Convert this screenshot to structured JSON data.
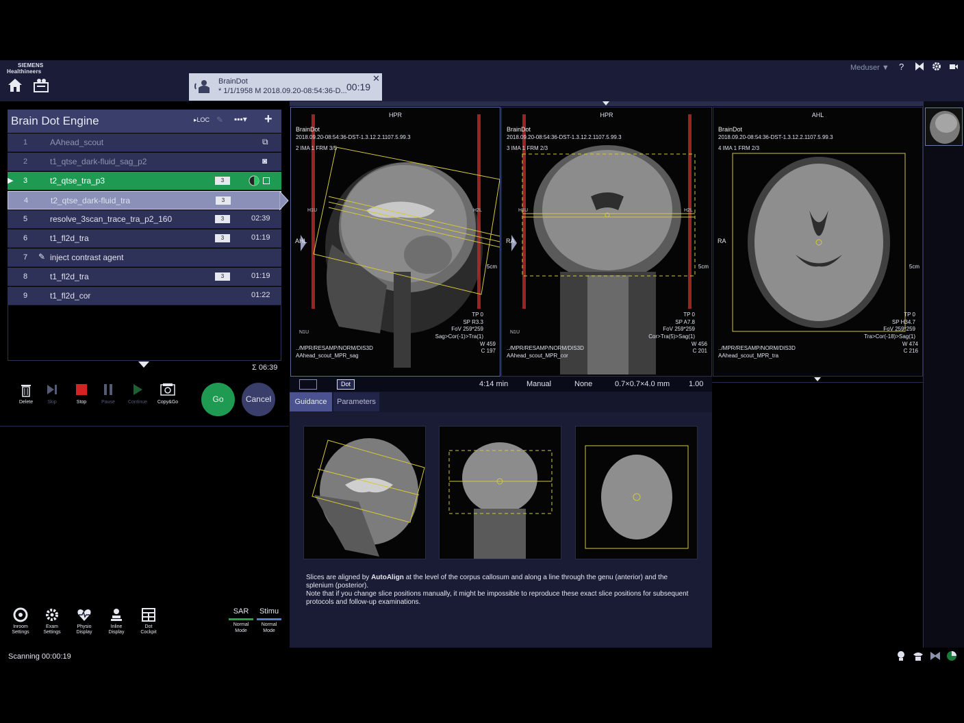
{
  "header": {
    "logo_line1": "SIEMENS",
    "logo_line2": "Healthineers",
    "user_menu": "Meduser ▼",
    "help": "?"
  },
  "patient": {
    "name": "BrainDot",
    "details": "* 1/1/1958 M 2018.09.20-08:54:36-D...",
    "elapsed": "00:19",
    "close": "✕"
  },
  "engine": {
    "title": "Brain Dot Engine",
    "loc_label": "▸LOC"
  },
  "protocols": [
    {
      "num": "1",
      "name": "AAhead_scout",
      "badge": "",
      "time": ""
    },
    {
      "num": "2",
      "name": "t1_qtse_dark-fluid_sag_p2",
      "badge": "",
      "time": ""
    },
    {
      "num": "3",
      "name": "t2_qtse_tra_p3",
      "badge": "3",
      "time": ""
    },
    {
      "num": "4",
      "name": "t2_qtse_dark-fluid_tra",
      "badge": "3",
      "time": ""
    },
    {
      "num": "5",
      "name": "resolve_3scan_trace_tra_p2_160",
      "badge": "3",
      "time": "02:39"
    },
    {
      "num": "6",
      "name": "t1_fl2d_tra",
      "badge": "3",
      "time": "01:19"
    },
    {
      "num": "7",
      "name": "inject contrast agent",
      "badge": "",
      "time": ""
    },
    {
      "num": "8",
      "name": "t1_fl2d_tra",
      "badge": "3",
      "time": "01:19"
    },
    {
      "num": "9",
      "name": "t1_fl2d_cor",
      "badge": "",
      "time": "01:22"
    }
  ],
  "total_time": "Σ 06:39",
  "controls": {
    "delete": "Delete",
    "skip": "Skip",
    "stop": "Stop",
    "pause": "Pause",
    "continue": "Continue",
    "copygo": "Copy&Go",
    "go": "Go",
    "cancel": "Cancel"
  },
  "bottom_tools": [
    {
      "l1": "Inroom",
      "l2": "Settings"
    },
    {
      "l1": "Exam",
      "l2": "Settings"
    },
    {
      "l1": "Physio",
      "l2": "Display"
    },
    {
      "l1": "Inline",
      "l2": "Display"
    },
    {
      "l1": "Dot",
      "l2": "Cockpit"
    }
  ],
  "modes": [
    {
      "title": "SAR",
      "l1": "Normal",
      "l2": "Mode"
    },
    {
      "title": "Stimu",
      "l1": "Normal",
      "l2": "Mode"
    }
  ],
  "status": "Scanning 00:00:19",
  "viewports": [
    {
      "orient": "HPR",
      "patient": "BrainDot",
      "study": "2018.09.20-08:54:36-DST-1.3.12.2.1107.5.99.3",
      "series": "2 IMA 1 FRM 3/5",
      "left_label": "AHL",
      "scale": "5cm",
      "params": [
        "TP 0",
        "SP R3.3",
        "FoV 259*259",
        "Sag>Cor(-1)>Tra(1)"
      ],
      "wc": [
        "W 459",
        "C 197"
      ],
      "path": "../MPR/RESAMP/NORM/DIS3D",
      "source": "AAhead_scout_MPR_sag",
      "h1": "H1U",
      "h2": "H2L",
      "n1": "N1U"
    },
    {
      "orient": "HPR",
      "patient": "BrainDot",
      "study": "2018.09.20-08:54:36-DST-1.3.12.2.1107.5.99.3",
      "series": "3 IMA 1 FRM 2/3",
      "left_label": "RA",
      "scale": "5cm",
      "params": [
        "TP 0",
        "SP A7.8",
        "FoV 259*259",
        "Cor>Tra(5)>Sag(1)"
      ],
      "wc": [
        "W 456",
        "C 201"
      ],
      "path": "../MPR/RESAMP/NORM/DIS3D",
      "source": "AAhead_scout_MPR_cor",
      "h1": "H1U",
      "h2": "H2L",
      "n1": "N1U"
    },
    {
      "orient": "AHL",
      "patient": "BrainDot",
      "study": "2018.09.20-08:54:36-DST-1.3.12.2.1107.5.99.3",
      "series": "4 IMA 1 FRM 2/3",
      "left_label": "RA",
      "scale": "5cm",
      "params": [
        "TP 0",
        "SP H34.7",
        "FoV 259*259",
        "Tra>Cor(-18)>Sag(1)"
      ],
      "wc": [
        "W 474",
        "C 216"
      ],
      "path": "../MPR/RESAMP/NORM/DIS3D",
      "source": "AAhead_scout_MPR_tra"
    }
  ],
  "info": {
    "dot": "Dot",
    "time": "4:14 min",
    "mode": "Manual",
    "none": "None",
    "voxel": "0.7×0.7×4.0 mm",
    "factor": "1.00"
  },
  "tabs": {
    "guidance": "Guidance",
    "parameters": "Parameters"
  },
  "guidance": {
    "line1_pre": "Slices are aligned by ",
    "line1_bold": "AutoAlign",
    "line1_post": " at the level of the corpus callosum and along a line through the genu (anterior) and the splenium (posterior).",
    "line2": "Note that if you change slice positions manually, it might be impossible to reproduce these exact slice positions for subsequent protocols and follow-up examinations."
  }
}
